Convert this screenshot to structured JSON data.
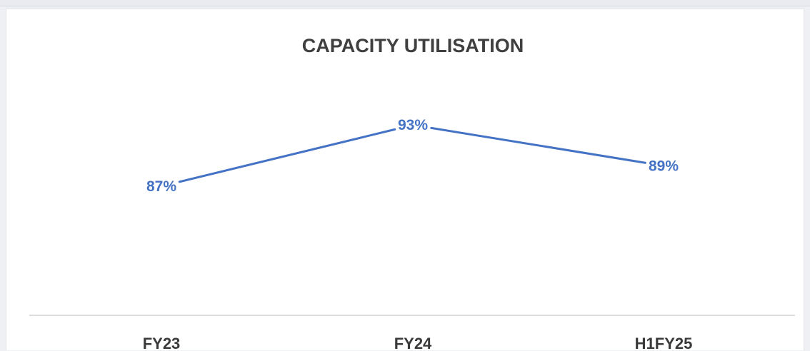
{
  "chart_data": {
    "type": "line",
    "title": "CAPACITY UTILISATION",
    "categories": [
      "FY23",
      "FY24",
      "H1FY25"
    ],
    "values": [
      87,
      93,
      89
    ],
    "data_labels": [
      "87%",
      "93%",
      "89%"
    ],
    "unit": "%",
    "xlabel": "",
    "ylabel": "",
    "ylim": [
      0,
      100
    ],
    "grid": false,
    "legend": "none",
    "colors": {
      "line": "#4472c4",
      "title": "#3f3f3f",
      "axis": "#d0d0d0",
      "tick_label": "#3a3a3a"
    }
  }
}
